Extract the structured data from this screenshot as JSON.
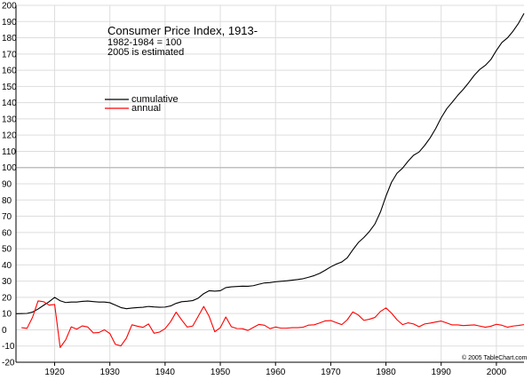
{
  "chart_data": {
    "type": "line",
    "title": "Consumer Price Index, 1913-",
    "subtitle_lines": [
      "1982-1984 = 100",
      "2005 is estimated"
    ],
    "credit": "© 2005 TableChart.com",
    "xlabel": "",
    "ylabel": "",
    "xlim": [
      1913,
      2005
    ],
    "ylim": [
      -20,
      200
    ],
    "x_ticks": [
      1920,
      1930,
      1940,
      1950,
      1960,
      1970,
      1980,
      1990,
      2000
    ],
    "y_ticks": [
      -20,
      -10,
      0,
      10,
      20,
      30,
      40,
      50,
      60,
      70,
      80,
      90,
      100,
      110,
      120,
      130,
      140,
      150,
      160,
      170,
      180,
      190,
      200
    ],
    "grid": true,
    "legend_placement": "upper-left",
    "colors": {
      "cumulative": "#000000",
      "annual": "#ff0000",
      "grid": "#dddddd",
      "reference_line": "#c0c0c0"
    },
    "reference_line_y": 100,
    "series": [
      {
        "name": "cumulative",
        "x": [
          1913,
          1914,
          1915,
          1916,
          1917,
          1918,
          1919,
          1920,
          1921,
          1922,
          1923,
          1924,
          1925,
          1926,
          1927,
          1928,
          1929,
          1930,
          1931,
          1932,
          1933,
          1934,
          1935,
          1936,
          1937,
          1938,
          1939,
          1940,
          1941,
          1942,
          1943,
          1944,
          1945,
          1946,
          1947,
          1948,
          1949,
          1950,
          1951,
          1952,
          1953,
          1954,
          1955,
          1956,
          1957,
          1958,
          1959,
          1960,
          1961,
          1962,
          1963,
          1964,
          1965,
          1966,
          1967,
          1968,
          1969,
          1970,
          1971,
          1972,
          1973,
          1974,
          1975,
          1976,
          1977,
          1978,
          1979,
          1980,
          1981,
          1982,
          1983,
          1984,
          1985,
          1986,
          1987,
          1988,
          1989,
          1990,
          1991,
          1992,
          1993,
          1994,
          1995,
          1996,
          1997,
          1998,
          1999,
          2000,
          2001,
          2002,
          2003,
          2004,
          2005
        ],
        "values": [
          9.9,
          10.0,
          10.1,
          10.9,
          12.8,
          15.1,
          17.3,
          20.0,
          17.9,
          16.8,
          17.1,
          17.1,
          17.5,
          17.7,
          17.4,
          17.1,
          17.1,
          16.7,
          15.2,
          13.7,
          13.0,
          13.4,
          13.7,
          13.9,
          14.4,
          14.1,
          13.9,
          14.0,
          14.7,
          16.3,
          17.3,
          17.6,
          18.0,
          19.5,
          22.3,
          24.1,
          23.8,
          24.1,
          26.0,
          26.5,
          26.7,
          26.9,
          26.8,
          27.2,
          28.1,
          28.9,
          29.1,
          29.6,
          29.9,
          30.2,
          30.6,
          31.0,
          31.5,
          32.4,
          33.4,
          34.8,
          36.7,
          38.8,
          40.5,
          41.8,
          44.4,
          49.3,
          53.8,
          56.9,
          60.6,
          65.2,
          72.6,
          82.4,
          90.9,
          96.5,
          99.6,
          103.9,
          107.6,
          109.6,
          113.6,
          118.3,
          124.0,
          130.7,
          136.2,
          140.3,
          144.5,
          148.2,
          152.4,
          156.9,
          160.5,
          163.0,
          166.6,
          172.2,
          177.1,
          179.9,
          184.0,
          188.9,
          195.0
        ]
      },
      {
        "name": "annual",
        "x": [
          1914,
          1915,
          1916,
          1917,
          1918,
          1919,
          1920,
          1921,
          1922,
          1923,
          1924,
          1925,
          1926,
          1927,
          1928,
          1929,
          1930,
          1931,
          1932,
          1933,
          1934,
          1935,
          1936,
          1937,
          1938,
          1939,
          1940,
          1941,
          1942,
          1943,
          1944,
          1945,
          1946,
          1947,
          1948,
          1949,
          1950,
          1951,
          1952,
          1953,
          1954,
          1955,
          1956,
          1957,
          1958,
          1959,
          1960,
          1961,
          1962,
          1963,
          1964,
          1965,
          1966,
          1967,
          1968,
          1969,
          1970,
          1971,
          1972,
          1973,
          1974,
          1975,
          1976,
          1977,
          1978,
          1979,
          1980,
          1981,
          1982,
          1983,
          1984,
          1985,
          1986,
          1987,
          1988,
          1989,
          1990,
          1991,
          1992,
          1993,
          1994,
          1995,
          1996,
          1997,
          1998,
          1999,
          2000,
          2001,
          2002,
          2003,
          2004,
          2005
        ],
        "values": [
          1.3,
          0.9,
          7.7,
          17.8,
          17.3,
          15.2,
          15.6,
          -10.9,
          -6.2,
          1.8,
          0.4,
          2.4,
          1.7,
          -1.9,
          -1.7,
          0.0,
          -2.3,
          -9.0,
          -9.9,
          -5.1,
          3.1,
          2.2,
          1.5,
          3.6,
          -2.1,
          -1.4,
          0.7,
          5.0,
          10.9,
          6.1,
          1.7,
          2.3,
          8.3,
          14.4,
          8.1,
          -1.2,
          1.3,
          7.9,
          1.9,
          0.8,
          0.7,
          -0.4,
          1.5,
          3.3,
          2.8,
          0.7,
          1.7,
          1.0,
          1.0,
          1.3,
          1.3,
          1.6,
          2.9,
          3.1,
          4.2,
          5.5,
          5.7,
          4.4,
          3.2,
          6.2,
          11.0,
          9.1,
          5.8,
          6.5,
          7.6,
          11.3,
          13.5,
          10.3,
          6.2,
          3.2,
          4.3,
          3.6,
          1.9,
          3.6,
          4.1,
          4.8,
          5.4,
          4.2,
          3.0,
          3.0,
          2.6,
          2.8,
          3.0,
          2.3,
          1.6,
          2.2,
          3.4,
          2.8,
          1.6,
          2.3,
          2.7,
          3.2
        ]
      }
    ]
  }
}
